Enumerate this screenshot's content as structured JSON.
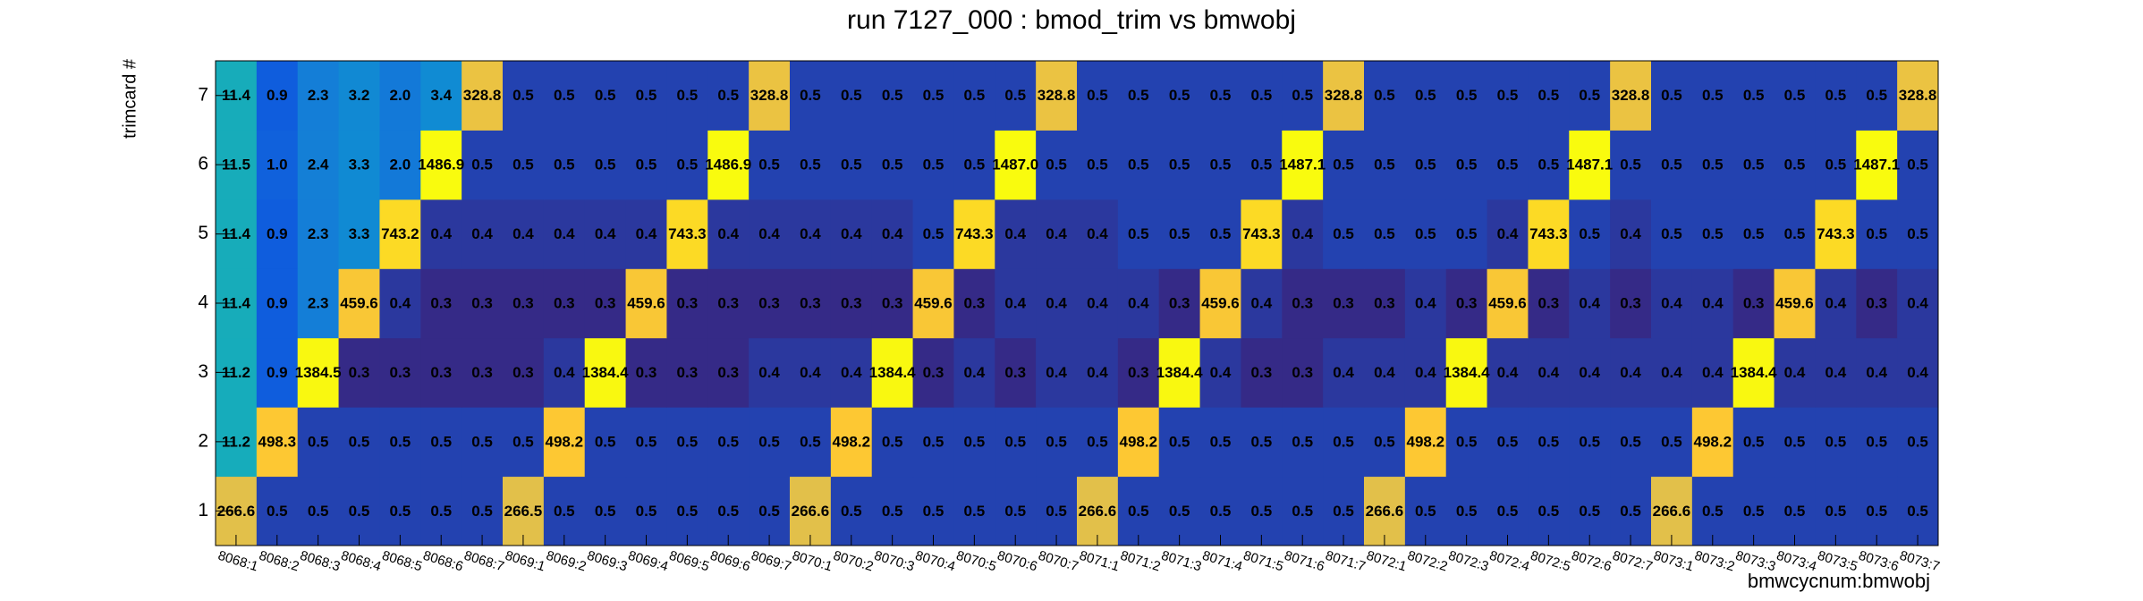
{
  "chart_data": {
    "type": "heatmap",
    "title": "run 7127_000 : bmod_trim vs bmwobj",
    "x_label": "bmwcycnum:bmwobj",
    "y_label": "trimcard #",
    "zlog": true,
    "palette": [
      "#352a87",
      "#0f5cdd",
      "#1481d6",
      "#06a4ca",
      "#2eb7a4",
      "#87bf77",
      "#d1bb59",
      "#fec832",
      "#f9fb0e"
    ],
    "x": [
      "8068:1",
      "8068:2",
      "8068:3",
      "8068:4",
      "8068:5",
      "8068:6",
      "8068:7",
      "8069:1",
      "8069:2",
      "8069:3",
      "8069:4",
      "8069:5",
      "8069:6",
      "8069:7",
      "8070:1",
      "8070:2",
      "8070:3",
      "8070:4",
      "8070:5",
      "8070:6",
      "8070:7",
      "8071:1",
      "8071:2",
      "8071:3",
      "8071:4",
      "8071:5",
      "8071:6",
      "8071:7",
      "8072:1",
      "8072:2",
      "8072:3",
      "8072:4",
      "8072:5",
      "8072:6",
      "8072:7",
      "8073:1",
      "8073:2",
      "8073:3",
      "8073:4",
      "8073:5",
      "8073:6",
      "8073:7"
    ],
    "y": [
      1,
      2,
      3,
      4,
      5,
      6,
      7
    ],
    "z": [
      [
        266.6,
        0.5,
        0.5,
        0.5,
        0.5,
        0.5,
        0.5,
        266.5,
        0.5,
        0.5,
        0.5,
        0.5,
        0.5,
        0.5,
        266.6,
        0.5,
        0.5,
        0.5,
        0.5,
        0.5,
        0.5,
        266.6,
        0.5,
        0.5,
        0.5,
        0.5,
        0.5,
        0.5,
        266.6,
        0.5,
        0.5,
        0.5,
        0.5,
        0.5,
        0.5,
        266.6,
        0.5,
        0.5,
        0.5,
        0.5,
        0.5,
        0.5
      ],
      [
        11.2,
        498.3,
        0.5,
        0.5,
        0.5,
        0.5,
        0.5,
        0.5,
        498.2,
        0.5,
        0.5,
        0.5,
        0.5,
        0.5,
        0.5,
        498.2,
        0.5,
        0.5,
        0.5,
        0.5,
        0.5,
        0.5,
        498.2,
        0.5,
        0.5,
        0.5,
        0.5,
        0.5,
        0.5,
        498.2,
        0.5,
        0.5,
        0.5,
        0.5,
        0.5,
        0.5,
        498.2,
        0.5,
        0.5,
        0.5,
        0.5,
        0.5
      ],
      [
        11.2,
        0.9,
        1384.5,
        0.3,
        0.3,
        0.3,
        0.3,
        0.3,
        0.4,
        1384.4,
        0.3,
        0.3,
        0.3,
        0.4,
        0.4,
        0.4,
        1384.4,
        0.3,
        0.4,
        0.3,
        0.4,
        0.4,
        0.3,
        1384.4,
        0.4,
        0.3,
        0.3,
        0.4,
        0.4,
        0.4,
        1384.4,
        0.4,
        0.4,
        0.4,
        0.4,
        0.4,
        0.4,
        1384.4,
        0.4,
        0.4,
        0.4,
        0.4
      ],
      [
        11.4,
        0.9,
        2.3,
        459.6,
        0.4,
        0.3,
        0.3,
        0.3,
        0.3,
        0.3,
        459.6,
        0.3,
        0.3,
        0.3,
        0.3,
        0.3,
        0.3,
        459.6,
        0.3,
        0.4,
        0.4,
        0.4,
        0.4,
        0.3,
        459.6,
        0.4,
        0.3,
        0.3,
        0.3,
        0.4,
        0.3,
        459.6,
        0.3,
        0.4,
        0.3,
        0.4,
        0.4,
        0.3,
        459.6,
        0.4,
        0.3,
        0.4
      ],
      [
        11.4,
        0.9,
        2.3,
        3.3,
        743.2,
        0.4,
        0.4,
        0.4,
        0.4,
        0.4,
        0.4,
        743.3,
        0.4,
        0.4,
        0.4,
        0.4,
        0.4,
        0.5,
        743.3,
        0.4,
        0.4,
        0.4,
        0.5,
        0.5,
        0.5,
        743.3,
        0.4,
        0.5,
        0.5,
        0.5,
        0.5,
        0.4,
        743.3,
        0.5,
        0.4,
        0.5,
        0.5,
        0.5,
        0.5,
        743.3,
        0.5,
        0.5
      ],
      [
        11.5,
        1.0,
        2.4,
        3.3,
        2.0,
        1486.9,
        0.5,
        0.5,
        0.5,
        0.5,
        0.5,
        0.5,
        1486.9,
        0.5,
        0.5,
        0.5,
        0.5,
        0.5,
        0.5,
        1487.0,
        0.5,
        0.5,
        0.5,
        0.5,
        0.5,
        0.5,
        1487.1,
        0.5,
        0.5,
        0.5,
        0.5,
        0.5,
        0.5,
        1487.1,
        0.5,
        0.5,
        0.5,
        0.5,
        0.5,
        0.5,
        1487.1,
        0.5
      ],
      [
        11.4,
        0.9,
        2.3,
        3.2,
        2.0,
        3.4,
        328.8,
        0.5,
        0.5,
        0.5,
        0.5,
        0.5,
        0.5,
        328.8,
        0.5,
        0.5,
        0.5,
        0.5,
        0.5,
        0.5,
        328.8,
        0.5,
        0.5,
        0.5,
        0.5,
        0.5,
        0.5,
        328.8,
        0.5,
        0.5,
        0.5,
        0.5,
        0.5,
        0.5,
        328.8,
        0.5,
        0.5,
        0.5,
        0.5,
        0.5,
        0.5,
        328.8
      ]
    ],
    "value_labels": [
      [
        "266.6",
        "0.5",
        "0.5",
        "0.5",
        "0.5",
        "0.5",
        "0.5",
        "266.5",
        "0.5",
        "0.5",
        "0.5",
        "0.5",
        "0.5",
        "0.5",
        "266.6",
        "0.5",
        "0.5",
        "0.5",
        "0.5",
        "0.5",
        "0.5",
        "266.6",
        "0.5",
        "0.5",
        "0.5",
        "0.5",
        "0.5",
        "0.5",
        "266.6",
        "0.5",
        "0.5",
        "0.5",
        "0.5",
        "0.5",
        "0.5",
        "266.6",
        "0.5",
        "0.5",
        "0.5",
        "0.5",
        "0.5",
        "0.5"
      ],
      [
        "11.2",
        "498.3",
        "0.5",
        "0.5",
        "0.5",
        "0.5",
        "0.5",
        "0.5",
        "498.2",
        "0.5",
        "0.5",
        "0.5",
        "0.5",
        "0.5",
        "0.5",
        "498.2",
        "0.5",
        "0.5",
        "0.5",
        "0.5",
        "0.5",
        "0.5",
        "498.2",
        "0.5",
        "0.5",
        "0.5",
        "0.5",
        "0.5",
        "0.5",
        "498.2",
        "0.5",
        "0.5",
        "0.5",
        "0.5",
        "0.5",
        "0.5",
        "498.2",
        "0.5",
        "0.5",
        "0.5",
        "0.5",
        "0.5"
      ],
      [
        "11.2",
        "0.9",
        "1384.5",
        "0.3",
        "0.3",
        "0.3",
        "0.3",
        "0.3",
        "0.4",
        "1384.4",
        "0.3",
        "0.3",
        "0.3",
        "0.4",
        "0.4",
        "0.4",
        "1384.4",
        "0.3",
        "0.4",
        "0.3",
        "0.4",
        "0.4",
        "0.3",
        "1384.4",
        "0.4",
        "0.3",
        "0.3",
        "0.4",
        "0.4",
        "0.4",
        "1384.4",
        "0.4",
        "0.4",
        "0.4",
        "0.4",
        "0.4",
        "0.4",
        "1384.4",
        "0.4",
        "0.4",
        "0.4",
        "0.4"
      ],
      [
        "11.4",
        "0.9",
        "2.3",
        "459.6",
        "0.4",
        "0.3",
        "0.3",
        "0.3",
        "0.3",
        "0.3",
        "459.6",
        "0.3",
        "0.3",
        "0.3",
        "0.3",
        "0.3",
        "0.3",
        "459.6",
        "0.3",
        "0.4",
        "0.4",
        "0.4",
        "0.4",
        "0.3",
        "459.6",
        "0.4",
        "0.3",
        "0.3",
        "0.3",
        "0.4",
        "0.3",
        "459.6",
        "0.3",
        "0.4",
        "0.3",
        "0.4",
        "0.4",
        "0.3",
        "459.6",
        "0.4",
        "0.3",
        "0.4"
      ],
      [
        "11.4",
        "0.9",
        "2.3",
        "3.3",
        "743.2",
        "0.4",
        "0.4",
        "0.4",
        "0.4",
        "0.4",
        "0.4",
        "743.3",
        "0.4",
        "0.4",
        "0.4",
        "0.4",
        "0.4",
        "0.5",
        "743.3",
        "0.4",
        "0.4",
        "0.4",
        "0.5",
        "0.5",
        "0.5",
        "743.3",
        "0.4",
        "0.5",
        "0.5",
        "0.5",
        "0.5",
        "0.4",
        "743.3",
        "0.5",
        "0.4",
        "0.5",
        "0.5",
        "0.5",
        "0.5",
        "743.3",
        "0.5",
        "0.5"
      ],
      [
        "11.5",
        "1.0",
        "2.4",
        "3.3",
        "2.0",
        "1486.9",
        "0.5",
        "0.5",
        "0.5",
        "0.5",
        "0.5",
        "0.5",
        "1486.9",
        "0.5",
        "0.5",
        "0.5",
        "0.5",
        "0.5",
        "0.5",
        "1487.0",
        "0.5",
        "0.5",
        "0.5",
        "0.5",
        "0.5",
        "0.5",
        "1487.1",
        "0.5",
        "0.5",
        "0.5",
        "0.5",
        "0.5",
        "0.5",
        "1487.1",
        "0.5",
        "0.5",
        "0.5",
        "0.5",
        "0.5",
        "0.5",
        "1487.1",
        "0.5"
      ],
      [
        "11.4",
        "0.9",
        "2.3",
        "3.2",
        "2.0",
        "3.4",
        "328.8",
        "0.5",
        "0.5",
        "0.5",
        "0.5",
        "0.5",
        "0.5",
        "328.8",
        "0.5",
        "0.5",
        "0.5",
        "0.5",
        "0.5",
        "0.5",
        "328.8",
        "0.5",
        "0.5",
        "0.5",
        "0.5",
        "0.5",
        "0.5",
        "328.8",
        "0.5",
        "0.5",
        "0.5",
        "0.5",
        "0.5",
        "0.5",
        "328.8",
        "0.5",
        "0.5",
        "0.5",
        "0.5",
        "0.5",
        "0.5",
        "328.8"
      ]
    ]
  }
}
